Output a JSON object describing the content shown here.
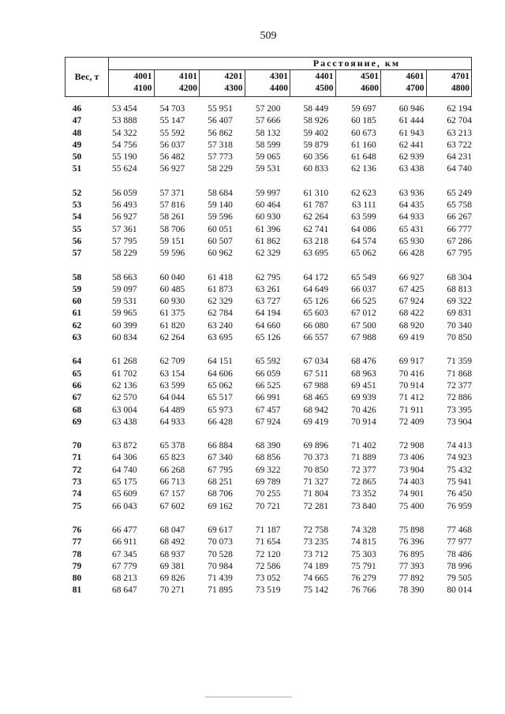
{
  "page_number": "509",
  "table": {
    "weight_header": "Вес, т",
    "distance_header": "Расстояние, км",
    "ranges": [
      [
        "4001",
        "4100"
      ],
      [
        "4101",
        "4200"
      ],
      [
        "4201",
        "4300"
      ],
      [
        "4301",
        "4400"
      ],
      [
        "4401",
        "4500"
      ],
      [
        "4501",
        "4600"
      ],
      [
        "4601",
        "4700"
      ],
      [
        "4701",
        "4800"
      ]
    ],
    "groups": [
      [
        [
          "46",
          "53 454",
          "54 703",
          "55 951",
          "57 200",
          "58 449",
          "59 697",
          "60 946",
          "62 194"
        ],
        [
          "47",
          "53 888",
          "55 147",
          "56 407",
          "57 666",
          "58 926",
          "60 185",
          "61 444",
          "62 704"
        ],
        [
          "48",
          "54 322",
          "55 592",
          "56 862",
          "58 132",
          "59 402",
          "60 673",
          "61 943",
          "63 213"
        ],
        [
          "49",
          "54 756",
          "56 037",
          "57 318",
          "58 599",
          "59 879",
          "61 160",
          "62 441",
          "63 722"
        ],
        [
          "50",
          "55 190",
          "56 482",
          "57 773",
          "59 065",
          "60 356",
          "61 648",
          "62 939",
          "64 231"
        ],
        [
          "51",
          "55 624",
          "56 927",
          "58 229",
          "59 531",
          "60 833",
          "62 136",
          "63 438",
          "64 740"
        ]
      ],
      [
        [
          "52",
          "56 059",
          "57 371",
          "58 684",
          "59 997",
          "61 310",
          "62 623",
          "63 936",
          "65 249"
        ],
        [
          "53",
          "56 493",
          "57 816",
          "59 140",
          "60 464",
          "61 787",
          "63 111",
          "64 435",
          "65 758"
        ],
        [
          "54",
          "56 927",
          "58 261",
          "59 596",
          "60 930",
          "62 264",
          "63 599",
          "64 933",
          "66 267"
        ],
        [
          "55",
          "57 361",
          "58 706",
          "60 051",
          "61 396",
          "62 741",
          "64 086",
          "65 431",
          "66 777"
        ],
        [
          "56",
          "57 795",
          "59 151",
          "60 507",
          "61 862",
          "63 218",
          "64 574",
          "65 930",
          "67 286"
        ],
        [
          "57",
          "58 229",
          "59 596",
          "60 962",
          "62 329",
          "63 695",
          "65 062",
          "66 428",
          "67 795"
        ]
      ],
      [
        [
          "58",
          "58 663",
          "60 040",
          "61 418",
          "62 795",
          "64 172",
          "65 549",
          "66 927",
          "68 304"
        ],
        [
          "59",
          "59 097",
          "60 485",
          "61 873",
          "63 261",
          "64 649",
          "66 037",
          "67 425",
          "68 813"
        ],
        [
          "60",
          "59 531",
          "60 930",
          "62 329",
          "63 727",
          "65 126",
          "66 525",
          "67 924",
          "69 322"
        ],
        [
          "61",
          "59 965",
          "61 375",
          "62 784",
          "64 194",
          "65 603",
          "67 012",
          "68 422",
          "69 831"
        ],
        [
          "62",
          "60 399",
          "61 820",
          "63 240",
          "64 660",
          "66 080",
          "67 500",
          "68 920",
          "70 340"
        ],
        [
          "63",
          "60 834",
          "62 264",
          "63 695",
          "65 126",
          "66 557",
          "67 988",
          "69 419",
          "70 850"
        ]
      ],
      [
        [
          "64",
          "61 268",
          "62 709",
          "64 151",
          "65 592",
          "67 034",
          "68 476",
          "69 917",
          "71 359"
        ],
        [
          "65",
          "61 702",
          "63 154",
          "64 606",
          "66 059",
          "67 511",
          "68 963",
          "70 416",
          "71 868"
        ],
        [
          "66",
          "62 136",
          "63 599",
          "65 062",
          "66 525",
          "67 988",
          "69 451",
          "70 914",
          "72 377"
        ],
        [
          "67",
          "62 570",
          "64 044",
          "65 517",
          "66 991",
          "68 465",
          "69 939",
          "71 412",
          "72 886"
        ],
        [
          "68",
          "63 004",
          "64 489",
          "65 973",
          "67 457",
          "68 942",
          "70 426",
          "71 911",
          "73 395"
        ],
        [
          "69",
          "63 438",
          "64 933",
          "66 428",
          "67 924",
          "69 419",
          "70 914",
          "72 409",
          "73 904"
        ]
      ],
      [
        [
          "70",
          "63 872",
          "65 378",
          "66 884",
          "68 390",
          "69 896",
          "71 402",
          "72 908",
          "74 413"
        ],
        [
          "71",
          "64 306",
          "65 823",
          "67 340",
          "68 856",
          "70 373",
          "71 889",
          "73 406",
          "74 923"
        ],
        [
          "72",
          "64 740",
          "66 268",
          "67 795",
          "69 322",
          "70 850",
          "72 377",
          "73 904",
          "75 432"
        ],
        [
          "73",
          "65 175",
          "66 713",
          "68 251",
          "69 789",
          "71 327",
          "72 865",
          "74 403",
          "75 941"
        ],
        [
          "74",
          "65 609",
          "67 157",
          "68 706",
          "70 255",
          "71 804",
          "73 352",
          "74 901",
          "76 450"
        ],
        [
          "75",
          "66 043",
          "67 602",
          "69 162",
          "70 721",
          "72 281",
          "73 840",
          "75 400",
          "76 959"
        ]
      ],
      [
        [
          "76",
          "66 477",
          "68 047",
          "69 617",
          "71 187",
          "72 758",
          "74 328",
          "75 898",
          "77 468"
        ],
        [
          "77",
          "66 911",
          "68 492",
          "70 073",
          "71 654",
          "73 235",
          "74 815",
          "76 396",
          "77 977"
        ],
        [
          "78",
          "67 345",
          "68 937",
          "70 528",
          "72 120",
          "73 712",
          "75 303",
          "76 895",
          "78 486"
        ],
        [
          "79",
          "67 779",
          "69 381",
          "70 984",
          "72 586",
          "74 189",
          "75 791",
          "77 393",
          "78 996"
        ],
        [
          "80",
          "68 213",
          "69 826",
          "71 439",
          "73 052",
          "74 665",
          "76 279",
          "77 892",
          "79 505"
        ],
        [
          "81",
          "68 647",
          "70 271",
          "71 895",
          "73 519",
          "75 142",
          "76 766",
          "78 390",
          "80 014"
        ]
      ]
    ]
  }
}
